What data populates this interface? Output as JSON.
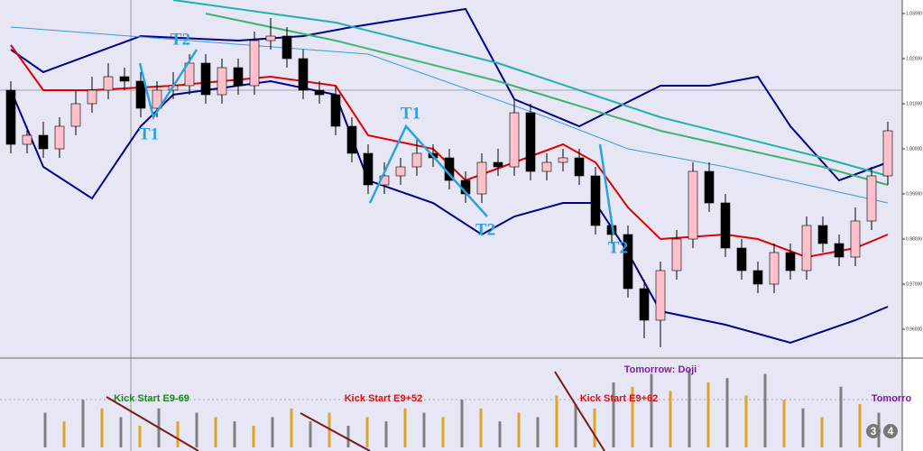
{
  "chart_data": [
    {
      "type": "candlestick",
      "open": [
        1.013,
        1.001,
        1.003,
        1.0,
        1.005,
        1.01,
        1.013,
        1.016,
        1.015,
        1.009,
        1.013,
        1.014,
        1.019,
        1.012,
        1.018,
        1.014,
        1.024,
        1.025,
        1.02,
        1.013,
        1.012,
        1.005,
        0.999,
        0.992,
        0.994,
        0.996,
        0.999,
        0.998,
        0.993,
        0.99,
        0.997,
        0.996,
        1.008,
        0.995,
        0.997,
        0.998,
        0.994,
        0.983,
        0.981,
        0.969,
        0.962,
        0.973,
        0.98,
        0.995,
        0.988,
        0.978,
        0.973,
        0.97,
        0.977,
        0.973,
        0.983,
        0.979,
        0.976,
        0.984,
        0.994
      ],
      "high": [
        1.015,
        1.005,
        1.006,
        1.007,
        1.013,
        1.016,
        1.019,
        1.018,
        1.017,
        1.015,
        1.017,
        1.021,
        1.021,
        1.02,
        1.02,
        1.026,
        1.029,
        1.027,
        1.022,
        1.015,
        1.014,
        1.007,
        1.001,
        0.997,
        0.998,
        1.002,
        1.001,
        1.0,
        0.995,
        0.999,
        1.0,
        1.011,
        1.01,
        0.999,
        1.0,
        1.0,
        0.996,
        0.985,
        0.983,
        0.971,
        0.975,
        0.982,
        0.997,
        0.997,
        0.99,
        0.98,
        0.975,
        0.979,
        0.979,
        0.985,
        0.985,
        0.981,
        0.987,
        0.996,
        1.006
      ],
      "low": [
        0.999,
        0.999,
        0.998,
        0.998,
        1.003,
        1.008,
        1.011,
        1.013,
        1.007,
        1.007,
        1.011,
        1.012,
        1.01,
        1.01,
        1.012,
        1.012,
        1.022,
        1.018,
        1.011,
        1.01,
        1.003,
        0.997,
        0.99,
        0.99,
        0.992,
        0.994,
        0.996,
        0.991,
        0.988,
        0.988,
        0.994,
        0.994,
        0.993,
        0.993,
        0.995,
        0.992,
        0.981,
        0.979,
        0.967,
        0.958,
        0.956,
        0.971,
        0.978,
        0.986,
        0.976,
        0.971,
        0.968,
        0.968,
        0.971,
        0.971,
        0.977,
        0.974,
        0.974,
        0.982,
        0.992
      ],
      "close": [
        1.001,
        1.003,
        1.0,
        1.005,
        1.01,
        1.013,
        1.016,
        1.015,
        1.009,
        1.013,
        1.014,
        1.019,
        1.012,
        1.018,
        1.014,
        1.024,
        1.025,
        1.02,
        1.013,
        1.012,
        1.005,
        0.999,
        0.992,
        0.994,
        0.996,
        0.999,
        0.998,
        0.993,
        0.99,
        0.997,
        0.996,
        1.008,
        0.995,
        0.997,
        0.998,
        0.994,
        0.983,
        0.981,
        0.969,
        0.962,
        0.973,
        0.98,
        0.995,
        0.988,
        0.978,
        0.973,
        0.97,
        0.977,
        0.973,
        0.983,
        0.979,
        0.976,
        0.984,
        0.994,
        1.004
      ],
      "up_color": "#ffc0cb",
      "down_color": "#000000",
      "lines": [
        {
          "color": "#00008b",
          "x": [
            0,
            2,
            8,
            14,
            18,
            21,
            28,
            31,
            35,
            40,
            43,
            46,
            48,
            51,
            54
          ],
          "values": [
            1.022,
            1.017,
            1.025,
            1.024,
            1.025,
            1.027,
            1.031,
            1.011,
            1.005,
            1.014,
            1.014,
            1.016,
            1.005,
            0.993,
            0.997
          ]
        },
        {
          "color": "#e00000",
          "x": [
            0,
            2,
            5,
            10,
            16,
            20,
            22,
            26,
            28,
            31,
            34,
            36,
            38,
            40,
            44,
            46,
            49,
            52,
            54
          ],
          "values": [
            1.023,
            1.013,
            1.013,
            1.014,
            1.016,
            1.014,
            1.003,
            1.0,
            0.993,
            0.997,
            1.001,
            0.997,
            0.987,
            0.98,
            0.981,
            0.98,
            0.976,
            0.978,
            0.981
          ]
        },
        {
          "color": "#00008b",
          "x": [
            0,
            2,
            5,
            8,
            10,
            16,
            20,
            22,
            26,
            29,
            31,
            34,
            36,
            38,
            40,
            44,
            48,
            52,
            54
          ],
          "values": [
            1.013,
            0.996,
            0.989,
            1.005,
            1.012,
            1.015,
            1.012,
            0.993,
            0.988,
            0.981,
            0.985,
            0.988,
            0.988,
            0.977,
            0.964,
            0.961,
            0.957,
            0.962,
            0.965
          ]
        },
        {
          "color": "#20b2aa",
          "x": [
            10,
            20,
            30,
            40,
            50,
            54
          ],
          "values": [
            1.033,
            1.028,
            1.019,
            1.007,
            0.998,
            0.994
          ]
        },
        {
          "color": "#3cb371",
          "x": [
            12,
            20,
            30,
            40,
            50,
            54
          ],
          "values": [
            1.03,
            1.024,
            1.015,
            1.004,
            0.996,
            0.992
          ]
        },
        {
          "color": "#3a9bdc",
          "x": [
            0,
            11,
            22,
            33,
            38,
            44,
            49,
            54
          ],
          "values": [
            1.027,
            1.024,
            1.021,
            1.007,
            1.0,
            0.996,
            0.992,
            0.988
          ]
        }
      ],
      "ylim": [
        0.954,
        1.033
      ],
      "yticks": [
        {
          "value": 0.96,
          "label": "0.96000"
        },
        {
          "value": 0.97,
          "label": "0.97000"
        },
        {
          "value": 0.98,
          "label": "0.98000"
        },
        {
          "value": 0.99,
          "label": "0.99000"
        },
        {
          "value": 1.0,
          "label": "1.00000"
        },
        {
          "value": 1.01,
          "label": "1.01000"
        },
        {
          "value": 1.02,
          "label": "1.02000"
        },
        {
          "value": 1.03,
          "label": "1.03000"
        }
      ],
      "annotations": [
        {
          "text": "T2",
          "color": "#29a3e0"
        },
        {
          "text": "T1",
          "color": "#29a3e0"
        },
        {
          "text": "T1",
          "color": "#29a3e0"
        },
        {
          "text": "T2",
          "color": "#29a3e0"
        },
        {
          "text": "T2",
          "color": "#29a3e0"
        }
      ]
    },
    {
      "type": "bar",
      "values": [
        40,
        30,
        55,
        45,
        35,
        25,
        45,
        30,
        40,
        35,
        30,
        25,
        35,
        45,
        30,
        40,
        25,
        35,
        30,
        45,
        40,
        35,
        55,
        45,
        30,
        40,
        35,
        60,
        50,
        45,
        75,
        70,
        85,
        65,
        90,
        75,
        80,
        60,
        85,
        55,
        45,
        35,
        70,
        50,
        40
      ],
      "bar_colors": [
        "#808080",
        "#e0a526"
      ],
      "ylim": [
        0,
        100
      ],
      "annotations": [
        {
          "text": "Kick Start E9-69",
          "color": "#1a8a1a"
        },
        {
          "text": "Kick Start E9+52",
          "color": "#e01010"
        },
        {
          "text": "Kick Start E9+62",
          "color": "#e01010"
        },
        {
          "text": "Tomorrow: Doji",
          "color": "#7a1fa0"
        },
        {
          "text": "Tomorro",
          "color": "#7a1fa0"
        }
      ],
      "badges": [
        "3",
        "4"
      ]
    }
  ]
}
